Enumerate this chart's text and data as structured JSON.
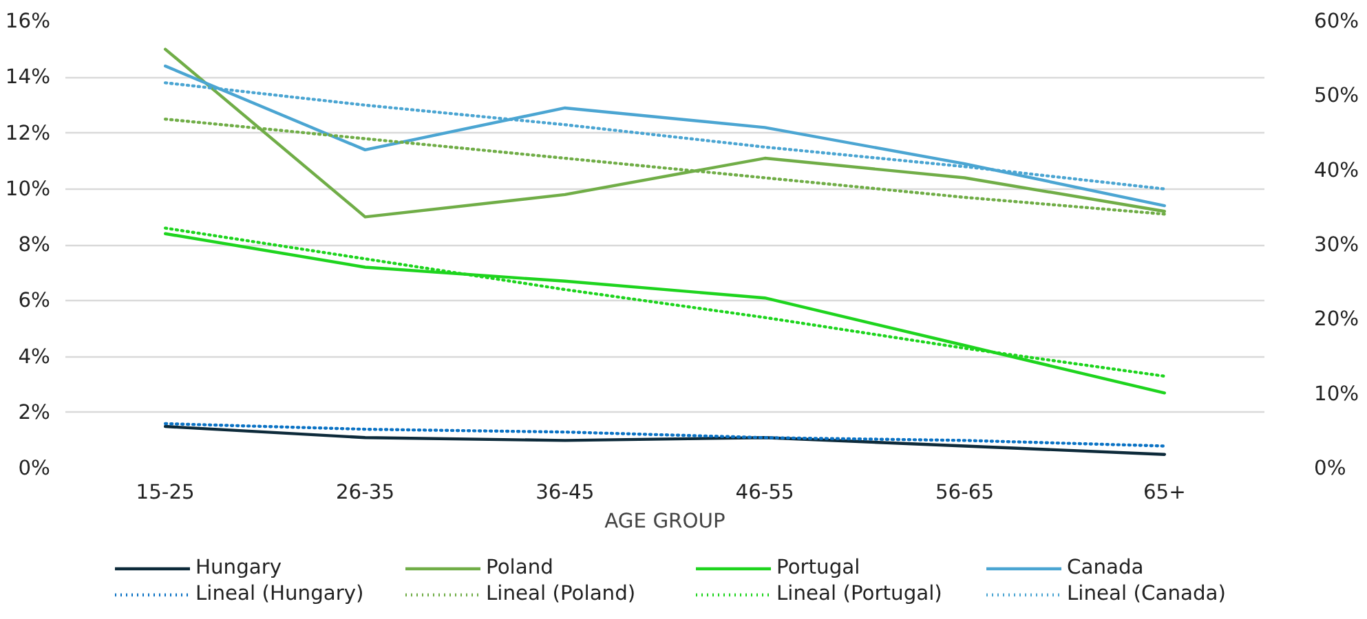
{
  "chart_data": {
    "type": "line",
    "xlabel": "AGE GROUP",
    "categories": [
      "15-25",
      "26-35",
      "36-45",
      "46-55",
      "56-65",
      "65+"
    ],
    "ylim": [
      0,
      16
    ],
    "yticks": [
      {
        "value": 0,
        "label": "0%"
      },
      {
        "value": 2,
        "label": "2%"
      },
      {
        "value": 4,
        "label": "4%"
      },
      {
        "value": 6,
        "label": "6%"
      },
      {
        "value": 8,
        "label": "8%"
      },
      {
        "value": 10,
        "label": "10%"
      },
      {
        "value": 12,
        "label": "12%"
      },
      {
        "value": 14,
        "label": "14%"
      },
      {
        "value": 16,
        "label": "16%"
      }
    ],
    "y2lim": [
      0,
      60
    ],
    "y2ticks": [
      {
        "value": 0,
        "label": "0%"
      },
      {
        "value": 10,
        "label": "10%"
      },
      {
        "value": 20,
        "label": "20%"
      },
      {
        "value": 30,
        "label": "30%"
      },
      {
        "value": 40,
        "label": "40%"
      },
      {
        "value": 50,
        "label": "50%"
      },
      {
        "value": 60,
        "label": "60%"
      }
    ],
    "grid": "y",
    "legend": "bottom",
    "marker": "none",
    "series": [
      {
        "name": "Hungary",
        "color": "#0d2a3a",
        "line_style": "solid",
        "values": [
          1.5,
          1.1,
          1.0,
          1.1,
          0.8,
          0.5
        ]
      },
      {
        "name": "Poland",
        "color": "#70ad47",
        "line_style": "solid",
        "values": [
          15.0,
          9.0,
          9.8,
          11.1,
          10.4,
          9.2
        ]
      },
      {
        "name": "Portugal",
        "color": "#1ed41e",
        "line_style": "solid",
        "values": [
          8.4,
          7.2,
          6.7,
          6.1,
          4.4,
          2.7
        ]
      },
      {
        "name": "Canada",
        "color": "#4ba5d2",
        "line_style": "solid",
        "values": [
          14.4,
          11.4,
          12.9,
          12.2,
          10.9,
          9.4
        ]
      },
      {
        "name": "Lineal (Hungary)",
        "color": "#0a72c4",
        "line_style": "dotted",
        "values": [
          1.6,
          1.4,
          1.3,
          1.1,
          1.0,
          0.8
        ]
      },
      {
        "name": "Lineal (Poland)",
        "color": "#70ad47",
        "line_style": "dotted",
        "values": [
          12.5,
          11.8,
          11.1,
          10.4,
          9.7,
          9.1
        ]
      },
      {
        "name": "Lineal (Portugal)",
        "color": "#1ed41e",
        "line_style": "dotted",
        "values": [
          8.6,
          7.5,
          6.4,
          5.4,
          4.3,
          3.3
        ]
      },
      {
        "name": "Lineal (Canada)",
        "color": "#4ba5d2",
        "line_style": "dotted",
        "values": [
          13.8,
          13.0,
          12.3,
          11.5,
          10.8,
          10.0
        ]
      }
    ]
  }
}
